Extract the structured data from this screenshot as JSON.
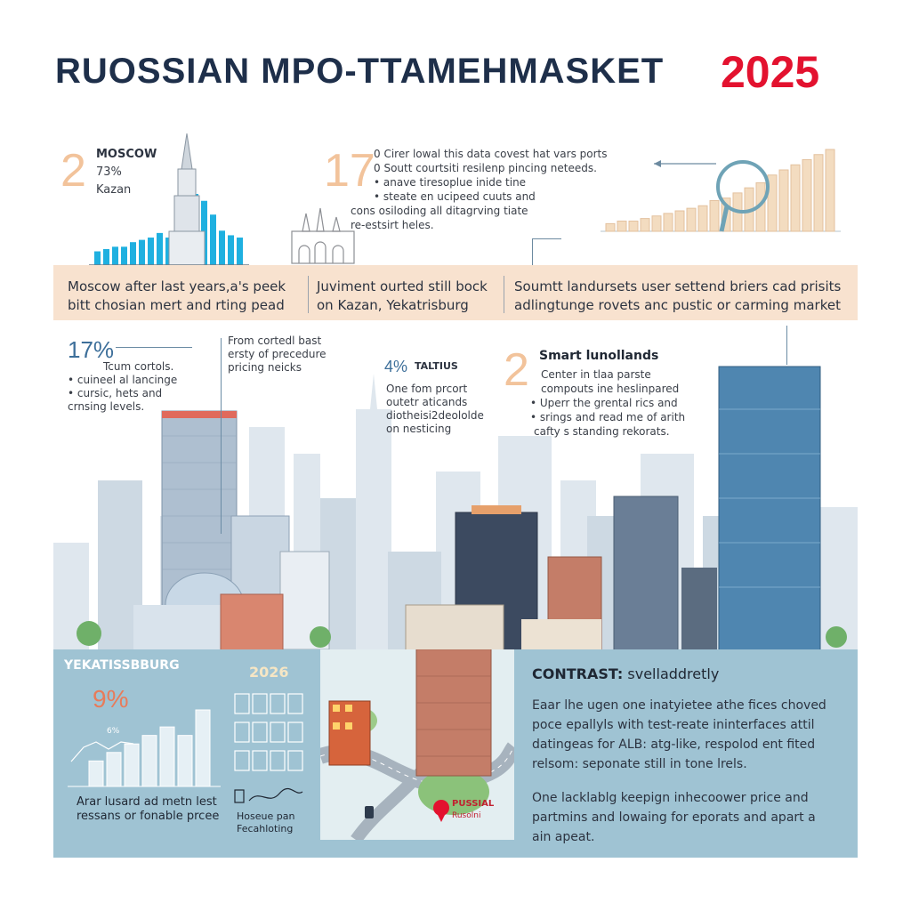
{
  "header": {
    "title": "RUOSSIAN MPO-TTAMEHMASKET",
    "year": "2025"
  },
  "top_left": {
    "big_number": "2",
    "city1": "MOSCOW",
    "stat": "73%",
    "city2": "Kazan"
  },
  "top_middle": {
    "big_number": "17",
    "lines": [
      "0 Cirer lowal this data covest hat vars ports",
      "0 Soutt courtsiti resilenp pincing neteeds.",
      "• anave tiresoplue inide tine",
      "• steate en ucipeed cuuts and",
      "cons osiloding all ditagrving tiate",
      "re-estsirt heles."
    ]
  },
  "band": {
    "col1": [
      "Moscow after last years,a's peek",
      "bitt chosian mert and rting pead"
    ],
    "col2": [
      "Juviment ourted still bock",
      "on Kazan, Yekatrisburg"
    ],
    "col3": [
      "Soumtt landursets user settend briers cad prisits",
      "adlingtunge rovets anc pustic or carming market"
    ]
  },
  "mid_left": {
    "pct": "17%",
    "lines": [
      "Tcum cortols.",
      "• cuineel al lancinge",
      "• cursic, hets and",
      "crnsing levels."
    ]
  },
  "mid_callout": {
    "lines": [
      "From cortedl bast",
      "ersty of precedure",
      "pricing neicks"
    ]
  },
  "mid_center": {
    "pct": "4%",
    "label": "TALTIUS",
    "lines": [
      "One fom prcort",
      "outetr aticands",
      "diotheisi2deololde",
      "on nesticing"
    ]
  },
  "mid_right": {
    "big_number": "2",
    "heading": "Smart lunollands",
    "lines": [
      "Center in tlaa parste",
      "compouts ine heslinpared",
      "• Uperr the grental rics and",
      "• srings and read me of arith",
      "cafty s standing rekorats."
    ]
  },
  "bottom_left": {
    "city": "YEKATISSBBURG",
    "year": "2026",
    "pct": "9%",
    "chart_small_label": "6%",
    "caption": [
      "Arar lusard ad metn lest",
      "ressans or fonable prcee"
    ],
    "icon_caption": [
      "Hoseue pan",
      "Fecahloting"
    ]
  },
  "bottom_center": {
    "pin_label": [
      "PUSSIAL",
      "Rusolni"
    ]
  },
  "bottom_right": {
    "heading_bold": "CONTRAST:",
    "heading_rest": " svelladdretly",
    "para1": [
      "Eaar lhe ugen one inatyietee athe fices choved",
      "poce epallyls with test-reate ininterfaces attil",
      "datingeas for ALB: atg-like, respolod ent fited",
      "relsom: seponate still in tone lrels."
    ],
    "para2": [
      "One lacklablg keepign inhecoower price and",
      "partmins and lowaing for eporats and apart a",
      "ain apeat."
    ]
  },
  "colors": {
    "title": "#1e2f4a",
    "accent_red": "#e3122f",
    "peach": "#f2c39b",
    "band": "#f8e2cf",
    "panel": "#9fc3d3",
    "bar_blue": "#1fb0e0"
  },
  "chart_data": [
    {
      "type": "bar",
      "title": "",
      "values": [
        6,
        7,
        8,
        8,
        10,
        11,
        12,
        14,
        12,
        18,
        26,
        31,
        28,
        22,
        15,
        13,
        12
      ],
      "note": "Moscow skyline bar graphic (top-left)"
    },
    {
      "type": "bar",
      "title": "",
      "values": [
        3,
        4,
        4,
        5,
        6,
        7,
        8,
        9,
        10,
        12,
        13,
        15,
        17,
        19,
        22,
        24,
        26,
        28,
        30,
        32
      ],
      "note": "Ascending bar graphic with circular loupe (top-right)"
    },
    {
      "type": "bar",
      "title": "",
      "values": [
        3,
        4,
        5,
        6,
        7,
        6,
        9
      ],
      "note": "Small bar chart in Yekatissbburg panel"
    }
  ]
}
